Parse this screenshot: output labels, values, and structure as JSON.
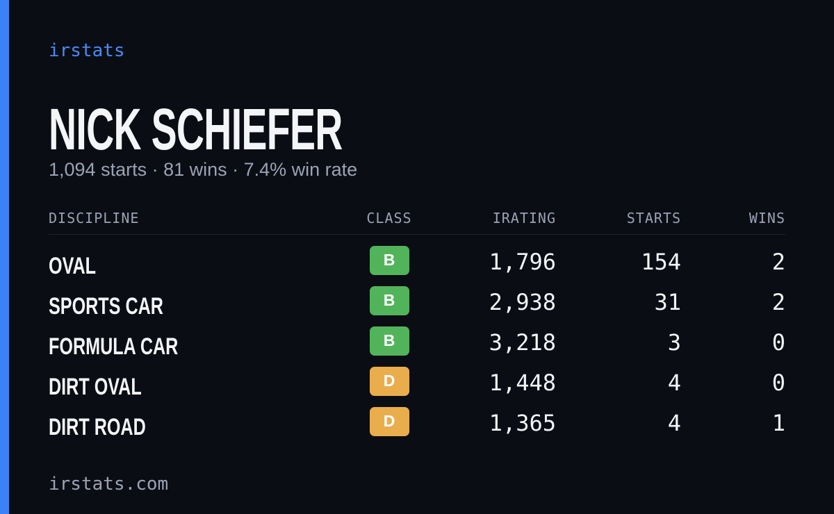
{
  "brand": "irstats",
  "driver": {
    "name": "NICK SCHIEFER",
    "summary": "1,094 starts · 81 wins · 7.4% win rate"
  },
  "table": {
    "headers": [
      "DISCIPLINE",
      "CLASS",
      "IRATING",
      "STARTS",
      "WINS"
    ],
    "rows": [
      {
        "discipline": "OVAL",
        "class": "B",
        "class_color": "#52b45a",
        "irating": "1,796",
        "starts": "154",
        "wins": "2"
      },
      {
        "discipline": "SPORTS CAR",
        "class": "B",
        "class_color": "#52b45a",
        "irating": "2,938",
        "starts": "31",
        "wins": "2"
      },
      {
        "discipline": "FORMULA CAR",
        "class": "B",
        "class_color": "#52b45a",
        "irating": "3,218",
        "starts": "3",
        "wins": "0"
      },
      {
        "discipline": "DIRT OVAL",
        "class": "D",
        "class_color": "#e9ad4c",
        "irating": "1,448",
        "starts": "4",
        "wins": "0"
      },
      {
        "discipline": "DIRT ROAD",
        "class": "D",
        "class_color": "#e9ad4c",
        "irating": "1,365",
        "starts": "4",
        "wins": "1"
      }
    ]
  },
  "footer": "irstats.com"
}
